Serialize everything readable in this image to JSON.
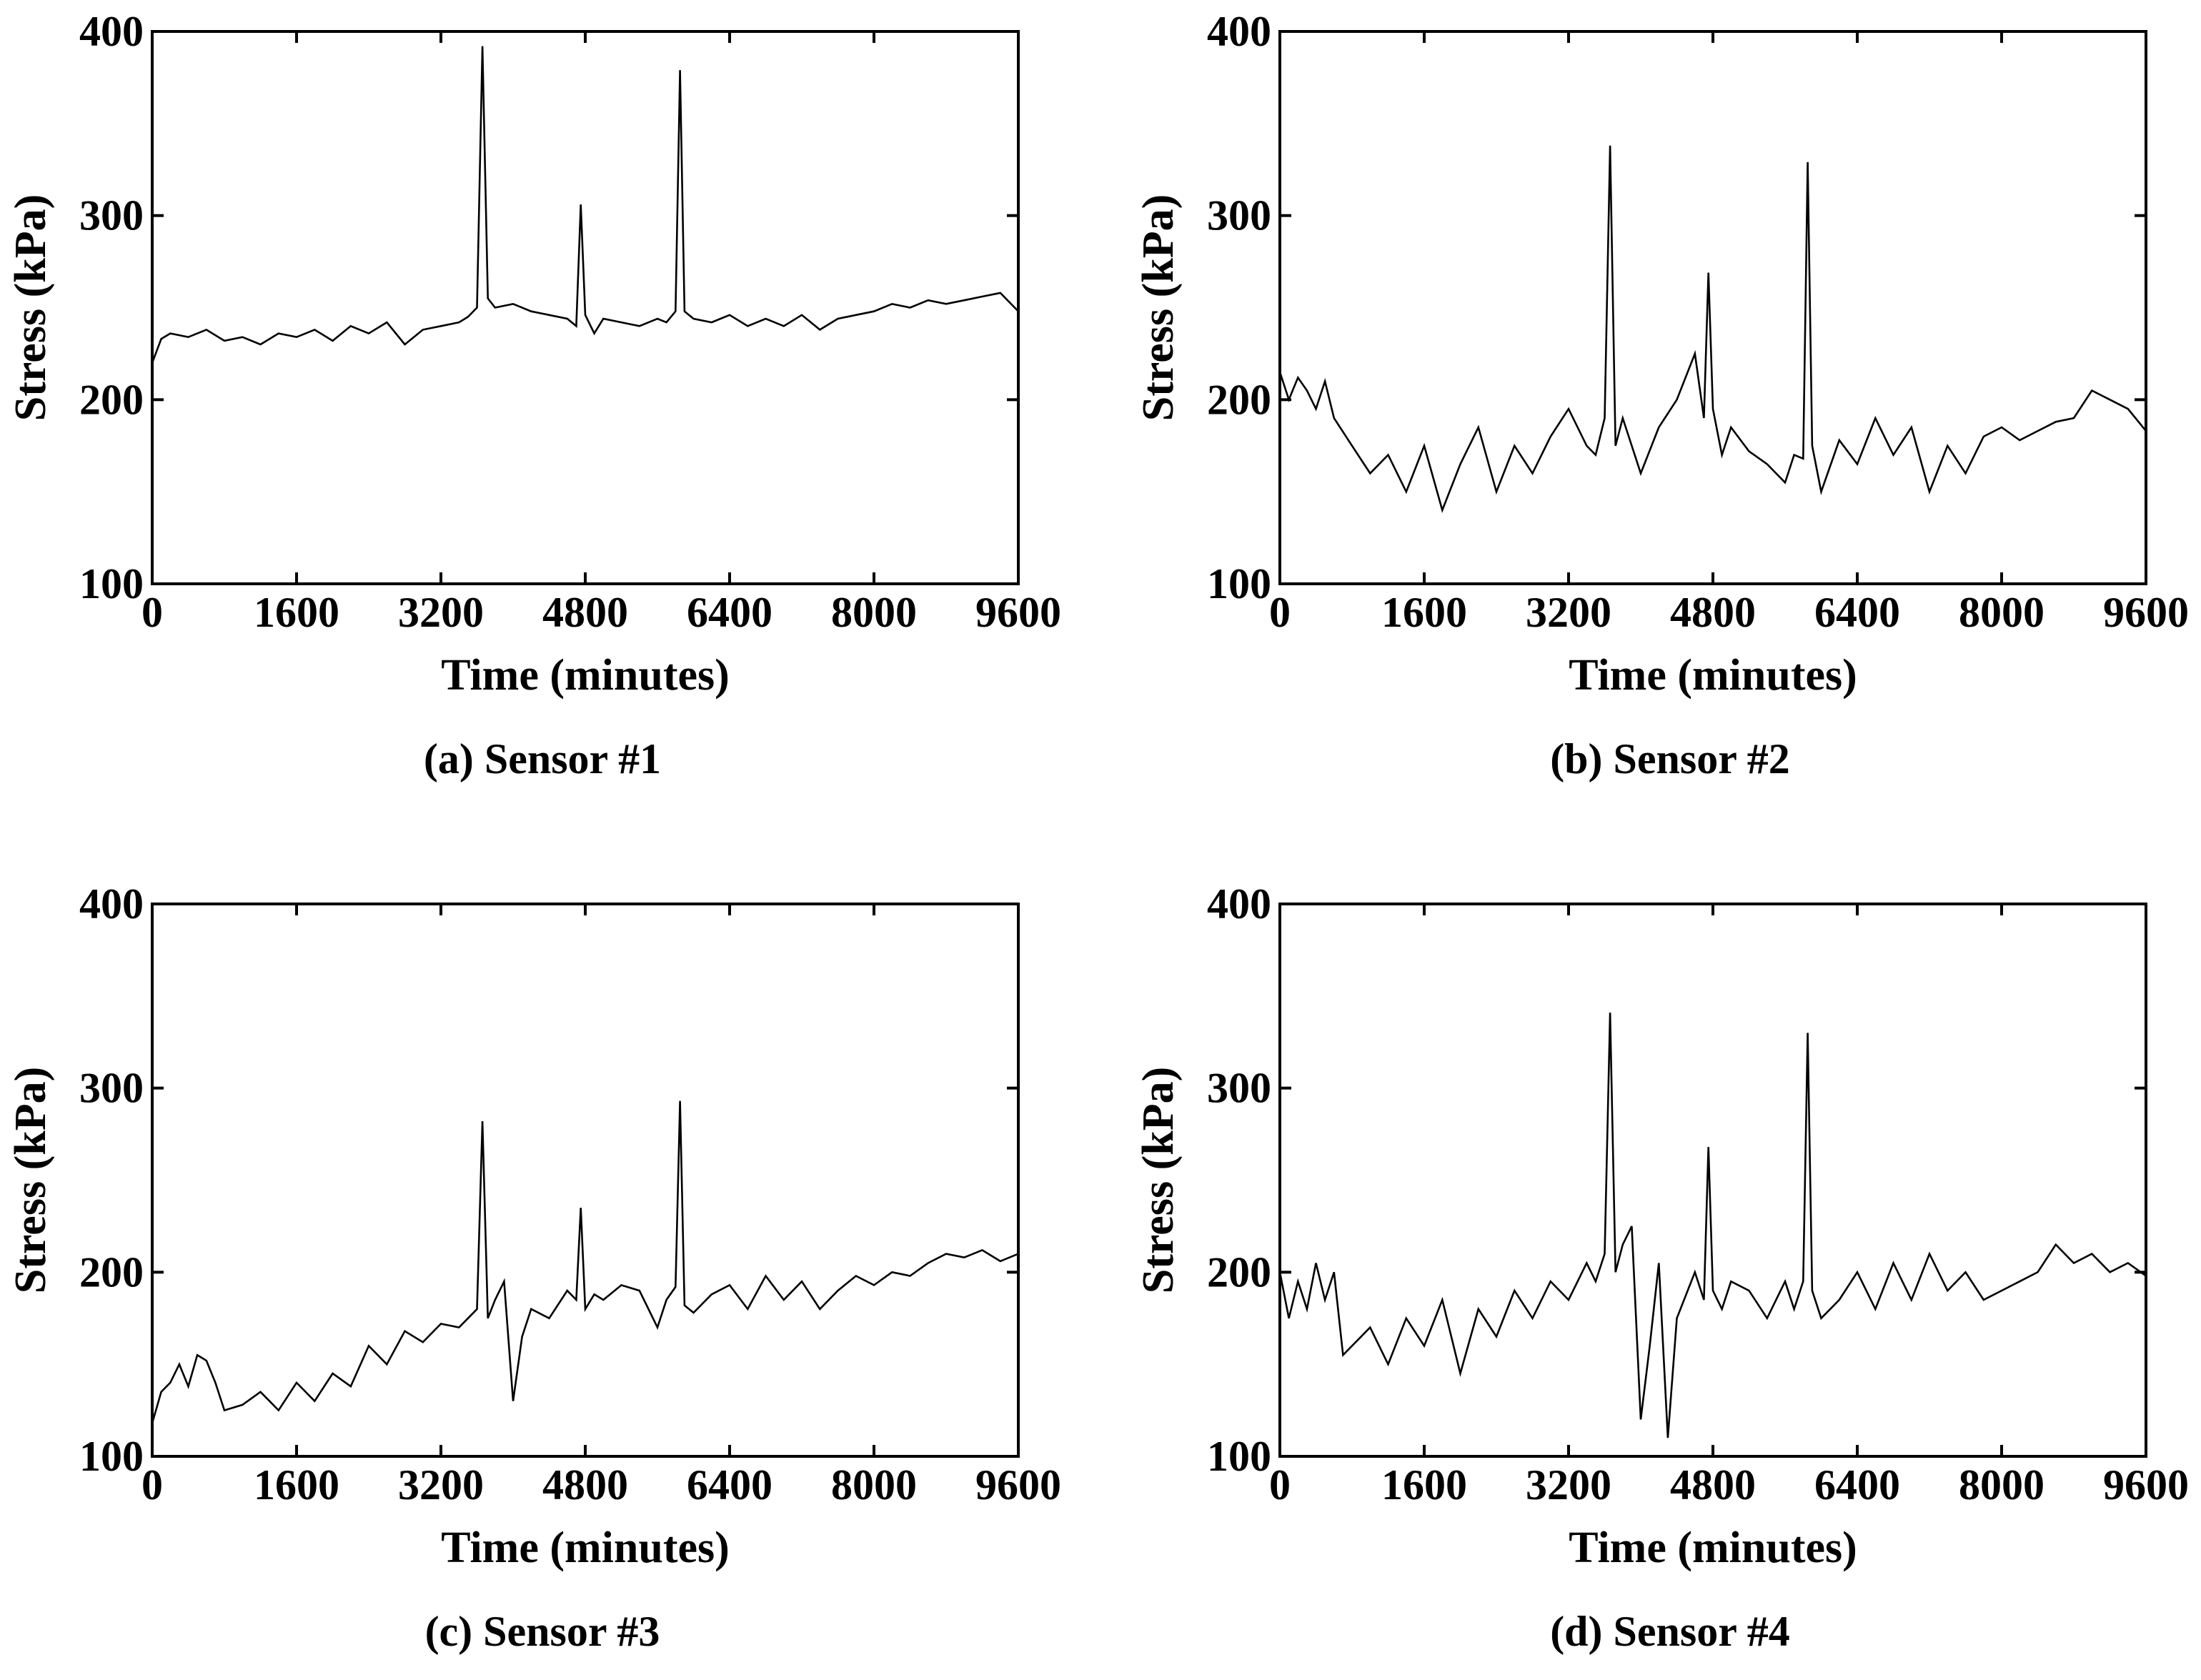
{
  "chart_data": [
    {
      "type": "line",
      "caption": "(a) Sensor #1",
      "xlabel": "Time (minutes)",
      "ylabel": "Stress (kPa)",
      "xlim": [
        0,
        9600
      ],
      "ylim": [
        100,
        400
      ],
      "xticks": [
        0,
        1600,
        3200,
        4800,
        6400,
        8000,
        9600
      ],
      "yticks": [
        100,
        200,
        300,
        400
      ],
      "x": [
        0,
        100,
        200,
        400,
        600,
        800,
        1000,
        1200,
        1400,
        1600,
        1800,
        2000,
        2200,
        2400,
        2600,
        2800,
        3000,
        3200,
        3400,
        3500,
        3600,
        3660,
        3720,
        3800,
        4000,
        4200,
        4400,
        4600,
        4700,
        4750,
        4800,
        4900,
        5000,
        5200,
        5400,
        5600,
        5700,
        5800,
        5850,
        5900,
        6000,
        6200,
        6400,
        6600,
        6800,
        7000,
        7200,
        7400,
        7600,
        7800,
        8000,
        8200,
        8400,
        8600,
        8800,
        9000,
        9200,
        9400,
        9600
      ],
      "y": [
        220,
        233,
        236,
        234,
        238,
        232,
        234,
        230,
        236,
        234,
        238,
        232,
        240,
        236,
        242,
        230,
        238,
        240,
        242,
        245,
        250,
        392,
        255,
        250,
        252,
        248,
        246,
        244,
        240,
        306,
        246,
        236,
        244,
        242,
        240,
        244,
        242,
        248,
        379,
        248,
        244,
        242,
        246,
        240,
        244,
        240,
        246,
        238,
        244,
        246,
        248,
        252,
        250,
        254,
        252,
        254,
        256,
        258,
        248
      ]
    },
    {
      "type": "line",
      "caption": "(b) Sensor #2",
      "xlabel": "Time (minutes)",
      "ylabel": "Stress (kPa)",
      "xlim": [
        0,
        9600
      ],
      "ylim": [
        100,
        400
      ],
      "xticks": [
        0,
        1600,
        3200,
        4800,
        6400,
        8000,
        9600
      ],
      "yticks": [
        100,
        200,
        300,
        400
      ],
      "x": [
        0,
        100,
        200,
        300,
        400,
        500,
        600,
        800,
        1000,
        1200,
        1400,
        1600,
        1800,
        2000,
        2200,
        2400,
        2600,
        2800,
        3000,
        3200,
        3400,
        3500,
        3600,
        3660,
        3720,
        3800,
        4000,
        4200,
        4400,
        4600,
        4700,
        4750,
        4800,
        4900,
        5000,
        5200,
        5400,
        5600,
        5700,
        5800,
        5850,
        5900,
        6000,
        6200,
        6400,
        6600,
        6800,
        7000,
        7200,
        7400,
        7600,
        7800,
        8000,
        8200,
        8400,
        8600,
        8800,
        9000,
        9200,
        9400,
        9600
      ],
      "y": [
        215,
        200,
        212,
        205,
        195,
        210,
        190,
        175,
        160,
        170,
        150,
        175,
        140,
        165,
        185,
        150,
        175,
        160,
        180,
        195,
        175,
        170,
        190,
        338,
        175,
        190,
        160,
        185,
        200,
        225,
        190,
        269,
        195,
        170,
        185,
        172,
        165,
        155,
        170,
        168,
        329,
        175,
        150,
        178,
        165,
        190,
        170,
        185,
        150,
        175,
        160,
        180,
        185,
        178,
        183,
        188,
        190,
        205,
        200,
        195,
        183
      ]
    },
    {
      "type": "line",
      "caption": "(c) Sensor #3",
      "xlabel": "Time (minutes)",
      "ylabel": "Stress (kPa)",
      "xlim": [
        0,
        9600
      ],
      "ylim": [
        100,
        400
      ],
      "xticks": [
        0,
        1600,
        3200,
        4800,
        6400,
        8000,
        9600
      ],
      "yticks": [
        100,
        200,
        300,
        400
      ],
      "x": [
        0,
        100,
        200,
        300,
        400,
        500,
        600,
        700,
        800,
        1000,
        1200,
        1400,
        1600,
        1800,
        2000,
        2200,
        2400,
        2600,
        2800,
        3000,
        3200,
        3400,
        3500,
        3600,
        3660,
        3720,
        3800,
        3900,
        4000,
        4100,
        4200,
        4400,
        4600,
        4700,
        4750,
        4800,
        4900,
        5000,
        5200,
        5400,
        5600,
        5700,
        5800,
        5850,
        5900,
        6000,
        6200,
        6400,
        6600,
        6800,
        7000,
        7200,
        7400,
        7600,
        7800,
        8000,
        8200,
        8400,
        8600,
        8800,
        9000,
        9200,
        9400,
        9600
      ],
      "y": [
        118,
        135,
        140,
        150,
        138,
        155,
        152,
        140,
        125,
        128,
        135,
        125,
        140,
        130,
        145,
        138,
        160,
        150,
        168,
        162,
        172,
        170,
        175,
        180,
        282,
        175,
        185,
        195,
        130,
        165,
        180,
        175,
        190,
        185,
        235,
        180,
        188,
        185,
        193,
        190,
        170,
        185,
        192,
        293,
        182,
        178,
        188,
        193,
        180,
        198,
        185,
        195,
        180,
        190,
        198,
        193,
        200,
        198,
        205,
        210,
        208,
        212,
        206,
        210
      ]
    },
    {
      "type": "line",
      "caption": "(d) Sensor #4",
      "xlabel": "Time (minutes)",
      "ylabel": "Stress (kPa)",
      "xlim": [
        0,
        9600
      ],
      "ylim": [
        100,
        400
      ],
      "xticks": [
        0,
        1600,
        3200,
        4800,
        6400,
        8000,
        9600
      ],
      "yticks": [
        100,
        200,
        300,
        400
      ],
      "x": [
        0,
        100,
        200,
        300,
        400,
        500,
        600,
        700,
        800,
        1000,
        1200,
        1400,
        1600,
        1800,
        2000,
        2200,
        2400,
        2600,
        2800,
        3000,
        3200,
        3400,
        3500,
        3600,
        3660,
        3720,
        3800,
        3900,
        4000,
        4100,
        4200,
        4300,
        4400,
        4600,
        4700,
        4750,
        4800,
        4900,
        5000,
        5200,
        5400,
        5600,
        5700,
        5800,
        5850,
        5900,
        6000,
        6200,
        6400,
        6600,
        6800,
        7000,
        7200,
        7400,
        7600,
        7800,
        8000,
        8200,
        8400,
        8600,
        8800,
        9000,
        9200,
        9400,
        9600
      ],
      "y": [
        200,
        175,
        195,
        180,
        205,
        185,
        200,
        155,
        160,
        170,
        150,
        175,
        160,
        185,
        145,
        180,
        165,
        190,
        175,
        195,
        185,
        205,
        195,
        210,
        341,
        200,
        215,
        225,
        120,
        160,
        205,
        110,
        175,
        200,
        185,
        268,
        190,
        180,
        195,
        190,
        175,
        195,
        180,
        195,
        330,
        190,
        175,
        185,
        200,
        180,
        205,
        185,
        210,
        190,
        200,
        185,
        190,
        195,
        200,
        215,
        205,
        210,
        200,
        205,
        198
      ]
    }
  ]
}
